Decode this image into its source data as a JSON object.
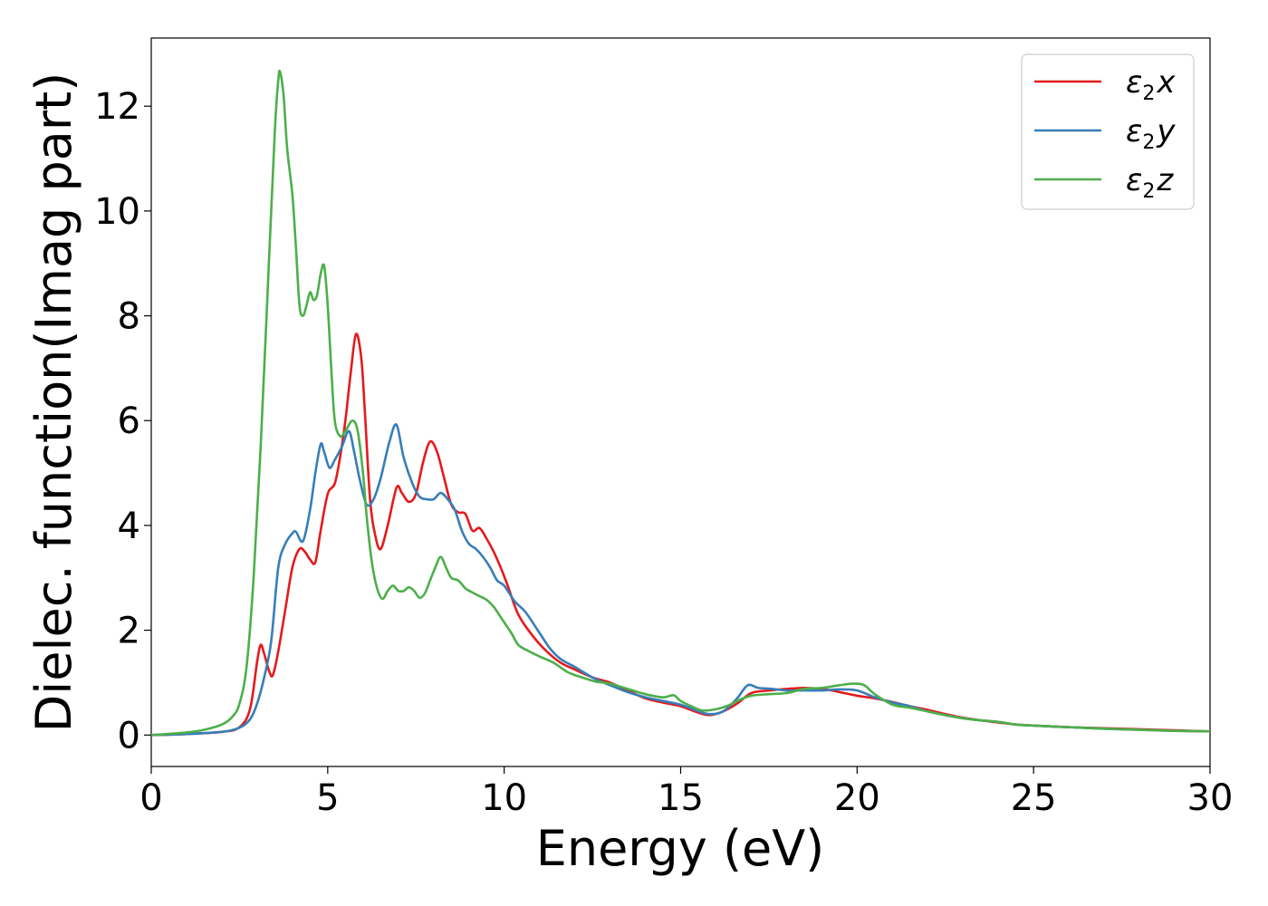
{
  "chart_data": {
    "type": "line",
    "xlabel": "Energy (eV)",
    "ylabel": "Dielec. function(Imag part)",
    "xlim": [
      0,
      30
    ],
    "ylim": [
      -0.6,
      13.3
    ],
    "xticks": [
      "0",
      "5",
      "10",
      "15",
      "20",
      "25",
      "30"
    ],
    "yticks": [
      "0",
      "2",
      "4",
      "6",
      "8",
      "10",
      "12"
    ],
    "grid": false,
    "legend_position": "top-right",
    "series": [
      {
        "name": "ε2x",
        "legend": {
          "base": "ε",
          "sub": "2",
          "suffix": "x"
        },
        "color": "#e41a1c",
        "points": [
          [
            0,
            0
          ],
          [
            1,
            0.02
          ],
          [
            2,
            0.06
          ],
          [
            2.5,
            0.15
          ],
          [
            2.8,
            0.5
          ],
          [
            3.0,
            1.4
          ],
          [
            3.1,
            1.72
          ],
          [
            3.2,
            1.55
          ],
          [
            3.35,
            1.2
          ],
          [
            3.45,
            1.15
          ],
          [
            3.6,
            1.6
          ],
          [
            3.8,
            2.4
          ],
          [
            4.0,
            3.2
          ],
          [
            4.2,
            3.55
          ],
          [
            4.35,
            3.5
          ],
          [
            4.5,
            3.35
          ],
          [
            4.65,
            3.3
          ],
          [
            4.8,
            3.9
          ],
          [
            5.0,
            4.6
          ],
          [
            5.2,
            4.8
          ],
          [
            5.35,
            5.3
          ],
          [
            5.5,
            6.0
          ],
          [
            5.65,
            6.9
          ],
          [
            5.8,
            7.65
          ],
          [
            5.95,
            7.2
          ],
          [
            6.05,
            6.2
          ],
          [
            6.2,
            4.5
          ],
          [
            6.35,
            3.8
          ],
          [
            6.5,
            3.55
          ],
          [
            6.7,
            4.0
          ],
          [
            6.95,
            4.72
          ],
          [
            7.1,
            4.62
          ],
          [
            7.3,
            4.45
          ],
          [
            7.5,
            4.6
          ],
          [
            7.7,
            5.2
          ],
          [
            7.9,
            5.6
          ],
          [
            8.1,
            5.4
          ],
          [
            8.3,
            4.9
          ],
          [
            8.5,
            4.4
          ],
          [
            8.7,
            4.25
          ],
          [
            8.9,
            4.22
          ],
          [
            9.1,
            3.9
          ],
          [
            9.3,
            3.95
          ],
          [
            9.5,
            3.75
          ],
          [
            9.7,
            3.5
          ],
          [
            9.9,
            3.2
          ],
          [
            10.1,
            2.85
          ],
          [
            10.4,
            2.3
          ],
          [
            10.8,
            1.9
          ],
          [
            11.2,
            1.6
          ],
          [
            11.6,
            1.38
          ],
          [
            12,
            1.25
          ],
          [
            12.5,
            1.1
          ],
          [
            13,
            1.0
          ],
          [
            13.5,
            0.85
          ],
          [
            14,
            0.7
          ],
          [
            14.5,
            0.62
          ],
          [
            15,
            0.55
          ],
          [
            15.4,
            0.45
          ],
          [
            15.8,
            0.38
          ],
          [
            16.2,
            0.45
          ],
          [
            16.6,
            0.6
          ],
          [
            17,
            0.8
          ],
          [
            17.5,
            0.85
          ],
          [
            18,
            0.88
          ],
          [
            18.5,
            0.9
          ],
          [
            19,
            0.88
          ],
          [
            19.5,
            0.82
          ],
          [
            20,
            0.75
          ],
          [
            20.5,
            0.7
          ],
          [
            21,
            0.63
          ],
          [
            21.5,
            0.55
          ],
          [
            22,
            0.48
          ],
          [
            22.5,
            0.4
          ],
          [
            23,
            0.33
          ],
          [
            23.5,
            0.28
          ],
          [
            24,
            0.24
          ],
          [
            24.5,
            0.2
          ],
          [
            25,
            0.18
          ],
          [
            26,
            0.15
          ],
          [
            27,
            0.13
          ],
          [
            28,
            0.11
          ],
          [
            29,
            0.09
          ],
          [
            30,
            0.07
          ]
        ]
      },
      {
        "name": "ε2y",
        "legend": {
          "base": "ε",
          "sub": "2",
          "suffix": "y"
        },
        "color": "#377eb8",
        "points": [
          [
            0,
            0
          ],
          [
            1,
            0.02
          ],
          [
            2,
            0.06
          ],
          [
            2.5,
            0.14
          ],
          [
            2.8,
            0.3
          ],
          [
            3.0,
            0.6
          ],
          [
            3.2,
            1.1
          ],
          [
            3.4,
            1.8
          ],
          [
            3.6,
            3.2
          ],
          [
            3.8,
            3.65
          ],
          [
            4.0,
            3.85
          ],
          [
            4.1,
            3.88
          ],
          [
            4.3,
            3.7
          ],
          [
            4.5,
            4.3
          ],
          [
            4.65,
            5.0
          ],
          [
            4.8,
            5.55
          ],
          [
            4.9,
            5.4
          ],
          [
            5.05,
            5.1
          ],
          [
            5.2,
            5.25
          ],
          [
            5.4,
            5.5
          ],
          [
            5.6,
            5.8
          ],
          [
            5.75,
            5.4
          ],
          [
            5.9,
            4.9
          ],
          [
            6.1,
            4.4
          ],
          [
            6.3,
            4.5
          ],
          [
            6.5,
            4.9
          ],
          [
            6.75,
            5.6
          ],
          [
            6.95,
            5.92
          ],
          [
            7.15,
            5.3
          ],
          [
            7.4,
            4.8
          ],
          [
            7.6,
            4.55
          ],
          [
            7.8,
            4.5
          ],
          [
            8.0,
            4.5
          ],
          [
            8.2,
            4.62
          ],
          [
            8.4,
            4.5
          ],
          [
            8.6,
            4.3
          ],
          [
            8.8,
            3.9
          ],
          [
            9.0,
            3.65
          ],
          [
            9.2,
            3.55
          ],
          [
            9.4,
            3.4
          ],
          [
            9.6,
            3.2
          ],
          [
            9.8,
            2.95
          ],
          [
            10.0,
            2.85
          ],
          [
            10.3,
            2.55
          ],
          [
            10.6,
            2.35
          ],
          [
            11,
            1.95
          ],
          [
            11.3,
            1.65
          ],
          [
            11.6,
            1.45
          ],
          [
            12,
            1.3
          ],
          [
            12.5,
            1.1
          ],
          [
            13,
            0.95
          ],
          [
            13.5,
            0.82
          ],
          [
            14,
            0.72
          ],
          [
            14.5,
            0.65
          ],
          [
            15,
            0.58
          ],
          [
            15.4,
            0.48
          ],
          [
            15.8,
            0.4
          ],
          [
            16.2,
            0.45
          ],
          [
            16.6,
            0.7
          ],
          [
            16.9,
            0.95
          ],
          [
            17.2,
            0.9
          ],
          [
            17.6,
            0.88
          ],
          [
            18,
            0.85
          ],
          [
            18.5,
            0.85
          ],
          [
            19,
            0.85
          ],
          [
            19.5,
            0.87
          ],
          [
            20,
            0.85
          ],
          [
            20.5,
            0.72
          ],
          [
            21,
            0.62
          ],
          [
            21.5,
            0.55
          ],
          [
            22,
            0.45
          ],
          [
            22.5,
            0.38
          ],
          [
            23,
            0.32
          ],
          [
            23.5,
            0.28
          ],
          [
            24,
            0.25
          ],
          [
            24.5,
            0.2
          ],
          [
            25,
            0.18
          ],
          [
            26,
            0.15
          ],
          [
            27,
            0.12
          ],
          [
            28,
            0.1
          ],
          [
            29,
            0.08
          ],
          [
            30,
            0.07
          ]
        ]
      },
      {
        "name": "ε2z",
        "legend": {
          "base": "ε",
          "sub": "2",
          "suffix": "z"
        },
        "color": "#4daf4a",
        "points": [
          [
            0,
            0
          ],
          [
            1,
            0.05
          ],
          [
            1.5,
            0.1
          ],
          [
            2.0,
            0.2
          ],
          [
            2.3,
            0.35
          ],
          [
            2.5,
            0.6
          ],
          [
            2.7,
            1.3
          ],
          [
            2.9,
            3.0
          ],
          [
            3.1,
            5.5
          ],
          [
            3.3,
            8.5
          ],
          [
            3.5,
            11.5
          ],
          [
            3.6,
            12.5
          ],
          [
            3.65,
            12.65
          ],
          [
            3.75,
            12.2
          ],
          [
            3.85,
            11.2
          ],
          [
            4.0,
            10.3
          ],
          [
            4.1,
            9.3
          ],
          [
            4.2,
            8.2
          ],
          [
            4.3,
            8.0
          ],
          [
            4.4,
            8.2
          ],
          [
            4.5,
            8.45
          ],
          [
            4.6,
            8.3
          ],
          [
            4.7,
            8.4
          ],
          [
            4.8,
            8.8
          ],
          [
            4.9,
            8.95
          ],
          [
            5.0,
            8.2
          ],
          [
            5.1,
            7.0
          ],
          [
            5.2,
            6.0
          ],
          [
            5.35,
            5.7
          ],
          [
            5.5,
            5.8
          ],
          [
            5.7,
            6.0
          ],
          [
            5.85,
            5.8
          ],
          [
            6.0,
            5.0
          ],
          [
            6.1,
            4.2
          ],
          [
            6.25,
            3.3
          ],
          [
            6.4,
            2.8
          ],
          [
            6.55,
            2.6
          ],
          [
            6.7,
            2.75
          ],
          [
            6.85,
            2.85
          ],
          [
            7.0,
            2.75
          ],
          [
            7.15,
            2.75
          ],
          [
            7.3,
            2.82
          ],
          [
            7.45,
            2.75
          ],
          [
            7.6,
            2.62
          ],
          [
            7.75,
            2.7
          ],
          [
            7.9,
            2.95
          ],
          [
            8.05,
            3.2
          ],
          [
            8.2,
            3.4
          ],
          [
            8.35,
            3.2
          ],
          [
            8.5,
            3.0
          ],
          [
            8.7,
            2.95
          ],
          [
            8.9,
            2.8
          ],
          [
            9.1,
            2.72
          ],
          [
            9.3,
            2.65
          ],
          [
            9.5,
            2.58
          ],
          [
            9.7,
            2.45
          ],
          [
            9.9,
            2.25
          ],
          [
            10.2,
            1.95
          ],
          [
            10.4,
            1.72
          ],
          [
            10.7,
            1.6
          ],
          [
            11.0,
            1.5
          ],
          [
            11.4,
            1.38
          ],
          [
            11.8,
            1.2
          ],
          [
            12.2,
            1.1
          ],
          [
            12.6,
            1.02
          ],
          [
            13,
            0.98
          ],
          [
            13.5,
            0.88
          ],
          [
            14,
            0.78
          ],
          [
            14.5,
            0.72
          ],
          [
            14.8,
            0.76
          ],
          [
            15,
            0.65
          ],
          [
            15.3,
            0.55
          ],
          [
            15.6,
            0.47
          ],
          [
            15.9,
            0.48
          ],
          [
            16.3,
            0.55
          ],
          [
            16.7,
            0.68
          ],
          [
            17,
            0.75
          ],
          [
            17.5,
            0.78
          ],
          [
            18,
            0.8
          ],
          [
            18.5,
            0.88
          ],
          [
            19,
            0.9
          ],
          [
            19.5,
            0.95
          ],
          [
            19.9,
            0.98
          ],
          [
            20.2,
            0.95
          ],
          [
            20.5,
            0.78
          ],
          [
            21,
            0.58
          ],
          [
            21.5,
            0.52
          ],
          [
            22,
            0.45
          ],
          [
            22.5,
            0.38
          ],
          [
            23,
            0.32
          ],
          [
            23.5,
            0.28
          ],
          [
            24,
            0.25
          ],
          [
            24.5,
            0.2
          ],
          [
            25,
            0.18
          ],
          [
            26,
            0.15
          ],
          [
            27,
            0.12
          ],
          [
            28,
            0.1
          ],
          [
            29,
            0.08
          ],
          [
            30,
            0.07
          ]
        ]
      }
    ]
  }
}
